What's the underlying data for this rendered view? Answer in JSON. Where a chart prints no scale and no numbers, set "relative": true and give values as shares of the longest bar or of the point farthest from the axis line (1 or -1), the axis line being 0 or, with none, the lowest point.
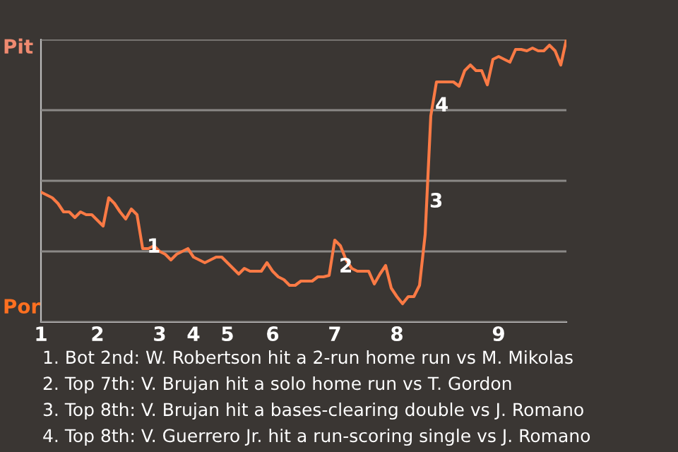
{
  "chart_data": {
    "type": "line",
    "relative": true,
    "categories": [
      "1",
      null,
      null,
      null,
      null,
      null,
      null,
      null,
      null,
      null,
      "2",
      null,
      null,
      null,
      null,
      null,
      null,
      null,
      null,
      null,
      null,
      "3",
      null,
      null,
      null,
      null,
      null,
      "4",
      null,
      null,
      null,
      null,
      null,
      "5",
      null,
      null,
      null,
      null,
      null,
      null,
      null,
      "6",
      null,
      null,
      null,
      null,
      null,
      null,
      null,
      null,
      null,
      null,
      "7",
      null,
      null,
      null,
      null,
      null,
      null,
      null,
      null,
      null,
      null,
      "8",
      null,
      null,
      null,
      null,
      null,
      null,
      null,
      null,
      null,
      null,
      null,
      null,
      null,
      null,
      null,
      null,
      null,
      "9",
      null,
      null,
      null,
      null,
      null,
      null,
      null,
      null,
      null,
      null,
      null,
      null
    ],
    "series": [
      {
        "color": "#fa7a45",
        "values": [
          0.46,
          0.45,
          0.44,
          0.42,
          0.39,
          0.39,
          0.37,
          0.39,
          0.38,
          0.38,
          0.36,
          0.34,
          0.44,
          0.42,
          0.39,
          0.365,
          0.4,
          0.38,
          0.26,
          0.26,
          0.27,
          0.25,
          0.24,
          0.22,
          0.24,
          0.25,
          0.26,
          0.23,
          0.22,
          0.21,
          0.22,
          0.23,
          0.23,
          0.21,
          0.19,
          0.17,
          0.19,
          0.18,
          0.18,
          0.18,
          0.21,
          0.18,
          0.16,
          0.15,
          0.13,
          0.13,
          0.145,
          0.145,
          0.145,
          0.16,
          0.16,
          0.165,
          0.29,
          0.27,
          0.22,
          0.19,
          0.18,
          0.18,
          0.18,
          0.135,
          0.17,
          0.2,
          0.12,
          0.09,
          0.065,
          0.09,
          0.09,
          0.13,
          0.31,
          0.73,
          0.85,
          0.85,
          0.85,
          0.85,
          0.835,
          0.89,
          0.91,
          0.89,
          0.89,
          0.84,
          0.93,
          0.94,
          0.93,
          0.92,
          0.965,
          0.965,
          0.96,
          0.97,
          0.96,
          0.96,
          0.98,
          0.96,
          0.91,
          1
        ]
      }
    ],
    "grid": "y",
    "annotations": [
      "Pit",
      "Por",
      "1",
      "2",
      "3",
      "4",
      "1. Bot 2nd: W. Robertson hit a 2-run home run vs M. Mikolas",
      "2. Top 7th: V. Brujan hit a solo home run vs T. Gordon",
      "3. Top 8th: V. Brujan hit a bases-clearing double vs J. Romano",
      "4. Top 8th: V. Guerrero Jr. hit a run-scoring single vs J. Romano"
    ]
  }
}
